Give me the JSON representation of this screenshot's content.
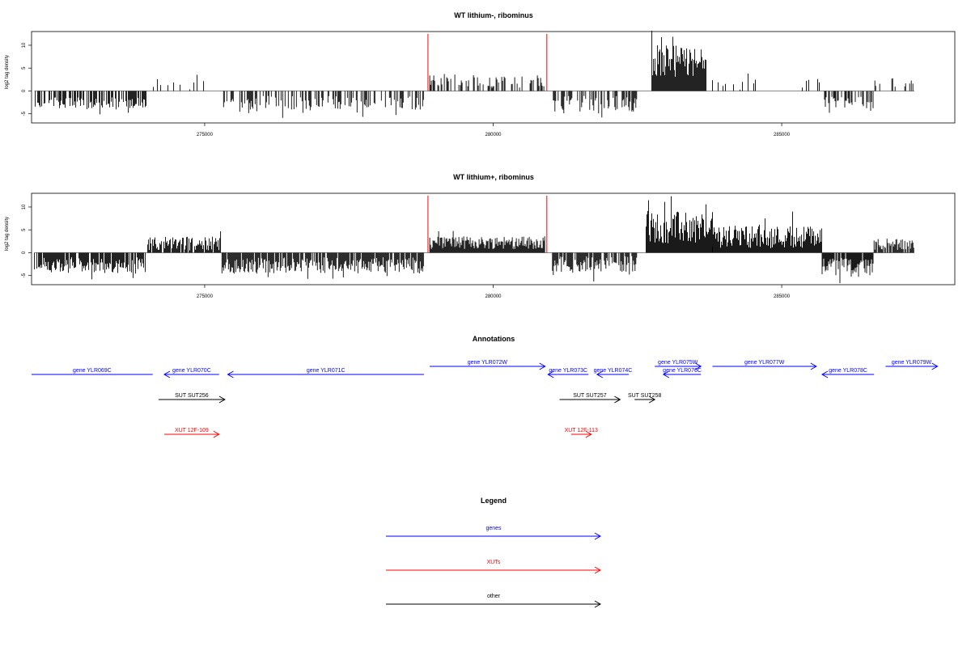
{
  "chart_data": [
    {
      "type": "bar",
      "title": "WT lithium-, ribominus",
      "ylabel": "log2 tag density",
      "xlim": [
        272000,
        288000
      ],
      "ylim": [
        -7,
        13
      ],
      "x_ticks": [
        275000,
        280000,
        285000
      ],
      "y_ticks": [
        -5,
        0,
        5,
        10
      ],
      "markers": [
        278870,
        280930
      ],
      "marker_color": "#ff0000",
      "bar_color": "#000000",
      "segments": [
        {
          "x0": 272050,
          "x1": 274000,
          "sign": -1,
          "mean": 2.6,
          "amp": 1.2,
          "density": 0.6
        },
        {
          "x0": 274000,
          "x1": 275000,
          "sign": 1,
          "mean": 1.4,
          "amp": 1.5,
          "density": 0.15
        },
        {
          "x0": 275300,
          "x1": 278800,
          "sign": -1,
          "mean": 2.6,
          "amp": 1.5,
          "density": 0.45
        },
        {
          "x0": 278900,
          "x1": 280900,
          "sign": 1,
          "mean": 2.0,
          "amp": 1.5,
          "density": 0.35
        },
        {
          "x0": 281000,
          "x1": 282500,
          "sign": -1,
          "mean": 2.8,
          "amp": 1.8,
          "density": 0.6
        },
        {
          "x0": 282750,
          "x1": 283700,
          "sign": 1,
          "mean": 6.5,
          "amp": 3.5,
          "density": 1.0
        },
        {
          "x0": 283800,
          "x1": 285700,
          "sign": 1,
          "mean": 2.0,
          "amp": 1.8,
          "density": 0.15
        },
        {
          "x0": 285700,
          "x1": 286600,
          "sign": -1,
          "mean": 2.5,
          "amp": 1.3,
          "density": 0.5
        },
        {
          "x0": 286600,
          "x1": 287300,
          "sign": 1,
          "mean": 1.8,
          "amp": 1.0,
          "density": 0.2
        }
      ]
    },
    {
      "type": "bar",
      "title": "WT lithium+, ribominus",
      "ylabel": "log2 tag density",
      "xlim": [
        272000,
        288000
      ],
      "ylim": [
        -7,
        13
      ],
      "x_ticks": [
        275000,
        280000,
        285000
      ],
      "y_ticks": [
        -5,
        0,
        5,
        10
      ],
      "markers": [
        278870,
        280930
      ],
      "marker_color": "#ff0000",
      "bar_color": "#000000",
      "segments": [
        {
          "x0": 272050,
          "x1": 274000,
          "sign": -1,
          "mean": 2.8,
          "amp": 1.8,
          "density": 0.9
        },
        {
          "x0": 274000,
          "x1": 275300,
          "sign": 1,
          "mean": 2.0,
          "amp": 1.5,
          "density": 0.8
        },
        {
          "x0": 275300,
          "x1": 278800,
          "sign": -1,
          "mean": 2.8,
          "amp": 1.8,
          "density": 0.9
        },
        {
          "x0": 278900,
          "x1": 280900,
          "sign": 1,
          "mean": 2.2,
          "amp": 1.4,
          "density": 1.0
        },
        {
          "x0": 281000,
          "x1": 282500,
          "sign": -1,
          "mean": 2.5,
          "amp": 1.8,
          "density": 0.8
        },
        {
          "x0": 282650,
          "x1": 283800,
          "sign": 1,
          "mean": 5.5,
          "amp": 3.5,
          "density": 1.0
        },
        {
          "x0": 283800,
          "x1": 285700,
          "sign": 1,
          "mean": 3.5,
          "amp": 2.5,
          "density": 1.0
        },
        {
          "x0": 285700,
          "x1": 286600,
          "sign": -1,
          "mean": 3.0,
          "amp": 2.0,
          "density": 0.9
        },
        {
          "x0": 286600,
          "x1": 287300,
          "sign": 1,
          "mean": 1.8,
          "amp": 1.2,
          "density": 0.8
        }
      ]
    }
  ],
  "annotations": {
    "title": "Annotations",
    "xlim": [
      272000,
      288000
    ],
    "features": [
      {
        "label": "gene YLR069C",
        "color": "#0000ff",
        "start": 272000,
        "end": 274100,
        "dir": "none",
        "row": 0
      },
      {
        "label": "gene YLR070C",
        "color": "#0000ff",
        "start": 274300,
        "end": 275250,
        "dir": "left",
        "row": 0
      },
      {
        "label": "gene YLR071C",
        "color": "#0000ff",
        "start": 275400,
        "end": 278800,
        "dir": "left",
        "row": 0
      },
      {
        "label": "gene YLR072W",
        "color": "#0000ff",
        "start": 278900,
        "end": 280900,
        "dir": "right",
        "row": -1
      },
      {
        "label": "gene YLR073C",
        "color": "#0000ff",
        "start": 280950,
        "end": 281650,
        "dir": "left",
        "row": 0
      },
      {
        "label": "gene YLR074C",
        "color": "#0000ff",
        "start": 281800,
        "end": 282350,
        "dir": "left",
        "row": 0
      },
      {
        "label": "gene YLR075W",
        "color": "#0000ff",
        "start": 282800,
        "end": 283600,
        "dir": "right",
        "row": -1
      },
      {
        "label": "gene YLR076C",
        "color": "#0000ff",
        "start": 282950,
        "end": 283600,
        "dir": "left",
        "row": 0
      },
      {
        "label": "gene YLR077W",
        "color": "#0000ff",
        "start": 283800,
        "end": 285600,
        "dir": "right",
        "row": -1
      },
      {
        "label": "gene YLR078C",
        "color": "#0000ff",
        "start": 285700,
        "end": 286600,
        "dir": "left",
        "row": 0
      },
      {
        "label": "gene YLR079W",
        "color": "#0000ff",
        "start": 286800,
        "end": 287700,
        "dir": "right",
        "row": -1
      },
      {
        "label": "SUT SUT256",
        "color": "#000000",
        "start": 274200,
        "end": 275350,
        "dir": "right",
        "row": 1
      },
      {
        "label": "SUT SUT257",
        "color": "#000000",
        "start": 281150,
        "end": 282200,
        "dir": "right",
        "row": 1
      },
      {
        "label": "SUT SUT258",
        "color": "#000000",
        "start": 282450,
        "end": 282800,
        "dir": "right",
        "row": 1
      },
      {
        "label": "XUT 12F-109",
        "color": "#ff0000",
        "start": 274300,
        "end": 275250,
        "dir": "right",
        "row": 2
      },
      {
        "label": "XUT 12F-113",
        "color": "#ff0000",
        "start": 281350,
        "end": 281700,
        "dir": "right",
        "row": 2
      }
    ]
  },
  "legend": {
    "title": "Legend",
    "items": [
      {
        "label": "genes",
        "color": "#0000ff"
      },
      {
        "label": "XUTs",
        "color": "#ff0000"
      },
      {
        "label": "other",
        "color": "#000000"
      }
    ]
  }
}
